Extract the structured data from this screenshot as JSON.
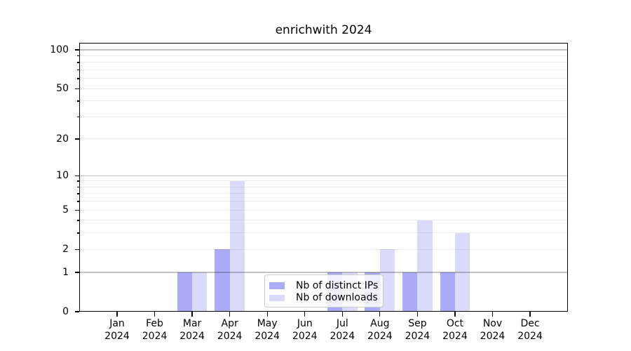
{
  "chart_data": {
    "type": "bar",
    "title": "enrichwith 2024",
    "categories": [
      "Jan 2024",
      "Feb 2024",
      "Mar 2024",
      "Apr 2024",
      "May 2024",
      "Jun 2024",
      "Jul 2024",
      "Aug 2024",
      "Sep 2024",
      "Oct 2024",
      "Nov 2024",
      "Dec 2024"
    ],
    "series": [
      {
        "name": "Nb of distinct IPs",
        "color": "#ABABFA",
        "values": [
          0,
          0,
          1,
          2,
          0,
          0,
          1,
          1,
          1,
          1,
          0,
          0
        ]
      },
      {
        "name": "Nb of downloads",
        "color": "#DBDAFA",
        "values": [
          0,
          0,
          1,
          9,
          0,
          0,
          1,
          2,
          4,
          3,
          0,
          0
        ]
      }
    ],
    "xlabel": "",
    "ylabel": "",
    "yscale": "log1p (position proportional to log10(value+1))",
    "ylim": [
      0,
      113
    ],
    "yticks_labeled": [
      0,
      1,
      2,
      5,
      10,
      20,
      50,
      100
    ],
    "yticks_minor": [
      3,
      4,
      6,
      7,
      8,
      9,
      30,
      40,
      60,
      70,
      80,
      90
    ],
    "gridlines_major": [
      1,
      10,
      100
    ],
    "gridlines_minor": [
      2,
      3,
      4,
      5,
      6,
      7,
      8,
      9,
      20,
      30,
      40,
      50,
      60,
      70,
      80,
      90
    ],
    "grid": true,
    "legend_position": "lower center"
  },
  "colors": {
    "background": "#FFFFFF",
    "axis": "#000000",
    "text": "#000000",
    "grid_major": "#C3C3C3",
    "grid_minor": "#EBEBEB",
    "legend_border": "#CCCCCC"
  },
  "legend": {
    "items": [
      "Nb of distinct IPs",
      "Nb of downloads"
    ]
  }
}
